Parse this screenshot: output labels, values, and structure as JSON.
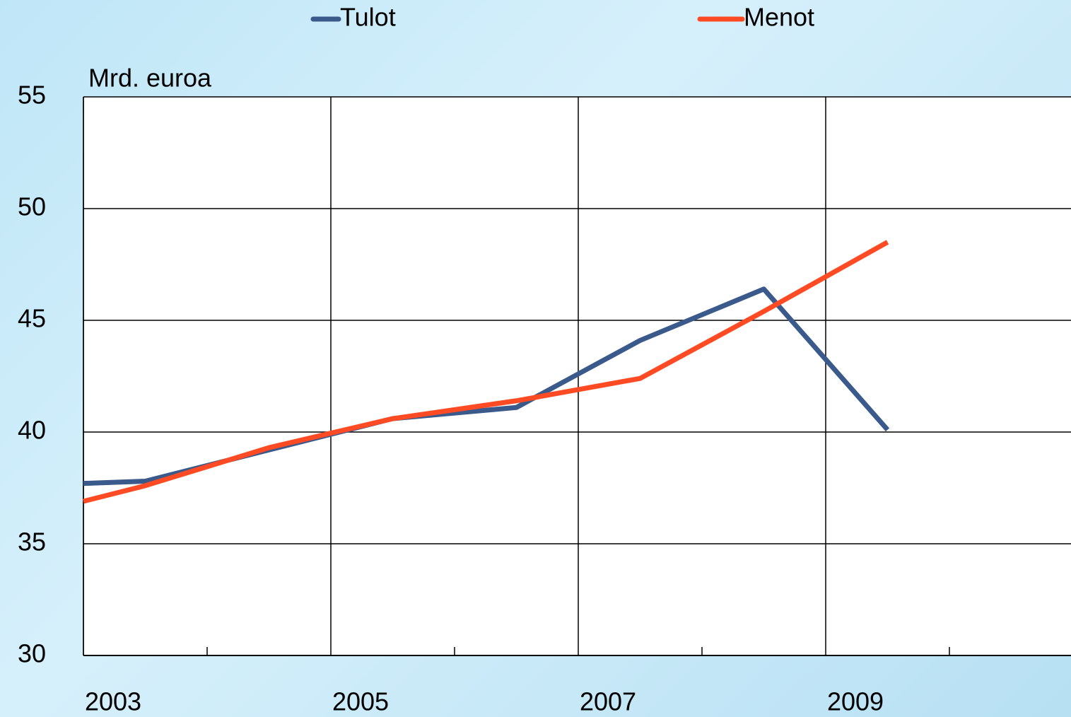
{
  "chart_data": {
    "type": "line",
    "y_axis_label": "Mrd. euroa",
    "x": [
      2003,
      2003.5,
      2004.5,
      2005.5,
      2006.5,
      2007.5,
      2008.5,
      2009.5
    ],
    "series": [
      {
        "name": "Tulot",
        "color": "#3a5a8c",
        "values": [
          37.7,
          37.8,
          39.2,
          40.6,
          41.1,
          44.1,
          46.4,
          40.1
        ]
      },
      {
        "name": "Menot",
        "color": "#ff4b24",
        "values": [
          36.9,
          37.6,
          39.3,
          40.6,
          41.4,
          42.4,
          45.4,
          48.5
        ]
      }
    ],
    "xlim": [
      2003,
      2011
    ],
    "xticks": [
      2003,
      2005,
      2007,
      2009
    ],
    "xminor_ticks": [
      2004,
      2006,
      2008,
      2010
    ],
    "ylim": [
      30,
      55
    ],
    "yticks": [
      30,
      35,
      40,
      45,
      50,
      55
    ],
    "grid": true,
    "legend": "top"
  }
}
